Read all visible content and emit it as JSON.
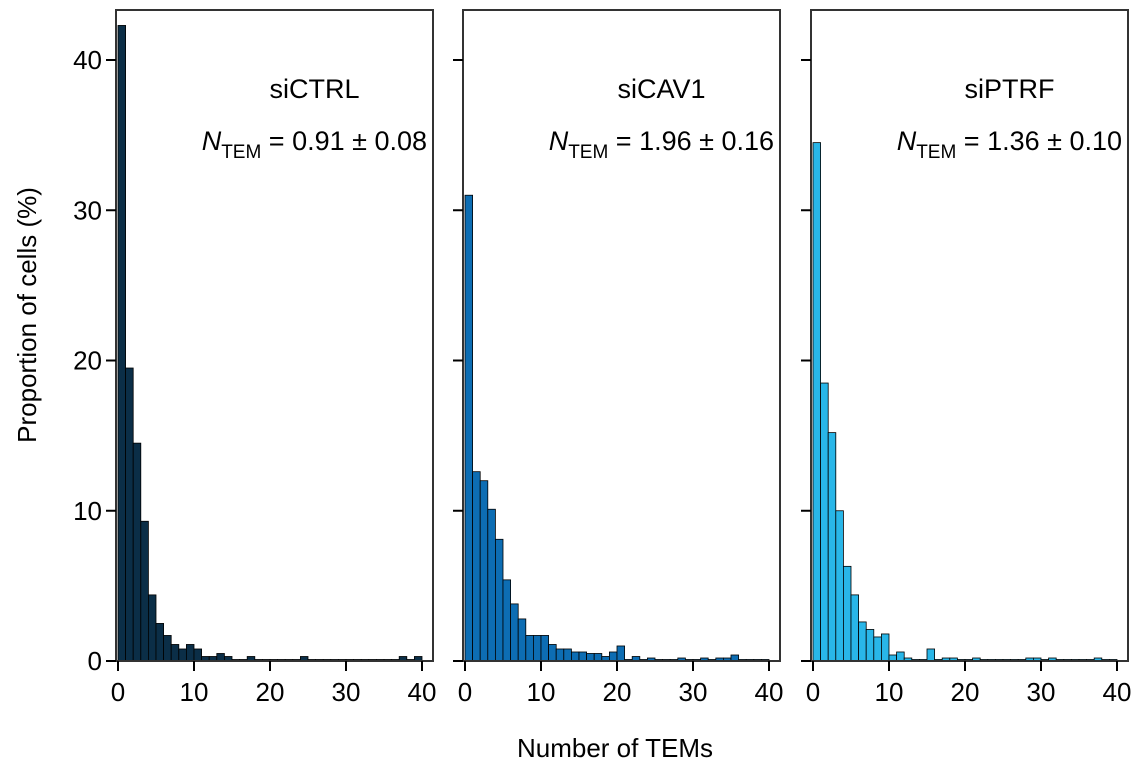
{
  "figure": {
    "ylabel": "Proportion of cells (%)",
    "xlabel": "Number of TEMs"
  },
  "chart_data": [
    {
      "type": "bar",
      "title": "siCTRL",
      "annotation": {
        "symbol": "N",
        "subscript": "TEM",
        "text": "= 0.91 ± 0.08"
      },
      "color": "#0b2e47",
      "xlim": [
        0,
        41
      ],
      "ylim": [
        0,
        43
      ],
      "xticks": [
        0,
        10,
        20,
        30,
        40
      ],
      "yticks": [
        0,
        10,
        20,
        30,
        40
      ],
      "bin_width": 1,
      "x": [
        1,
        2,
        3,
        4,
        5,
        6,
        7,
        8,
        9,
        10,
        11,
        12,
        13,
        14,
        15,
        16,
        17,
        18,
        19,
        20,
        21,
        22,
        23,
        24,
        25,
        26,
        27,
        28,
        29,
        30,
        31,
        32,
        33,
        34,
        35,
        36,
        37,
        38,
        39,
        40
      ],
      "values": [
        42.3,
        19.5,
        14.5,
        9.3,
        4.4,
        2.5,
        1.7,
        1.1,
        0.8,
        1.1,
        0.8,
        0.3,
        0.3,
        0.5,
        0.3,
        0.1,
        0.1,
        0.3,
        0.1,
        0.1,
        0.1,
        0.1,
        0.1,
        0.1,
        0.3,
        0.1,
        0.1,
        0.1,
        0.1,
        0.1,
        0.1,
        0.1,
        0.1,
        0.1,
        0.1,
        0.1,
        0.1,
        0.3,
        0.1,
        0.3
      ]
    },
    {
      "type": "bar",
      "title": "siCAV1",
      "annotation": {
        "symbol": "N",
        "subscript": "TEM",
        "text": "= 1.96 ± 0.16"
      },
      "color": "#0d6db3",
      "xlim": [
        0,
        41
      ],
      "ylim": [
        0,
        43
      ],
      "xticks": [
        0,
        10,
        20,
        30,
        40
      ],
      "yticks": [
        0,
        10,
        20,
        30,
        40
      ],
      "bin_width": 1,
      "x": [
        1,
        2,
        3,
        4,
        5,
        6,
        7,
        8,
        9,
        10,
        11,
        12,
        13,
        14,
        15,
        16,
        17,
        18,
        19,
        20,
        21,
        22,
        23,
        24,
        25,
        26,
        27,
        28,
        29,
        30,
        31,
        32,
        33,
        34,
        35,
        36,
        37,
        38,
        39,
        40
      ],
      "values": [
        31.0,
        12.6,
        12.0,
        10.1,
        8.1,
        5.4,
        3.8,
        2.8,
        1.7,
        1.7,
        1.7,
        1.1,
        0.8,
        0.8,
        0.6,
        0.6,
        0.5,
        0.5,
        0.3,
        0.6,
        1.0,
        0.1,
        0.3,
        0.1,
        0.2,
        0.1,
        0.1,
        0.1,
        0.2,
        0.1,
        0.1,
        0.2,
        0.1,
        0.2,
        0.2,
        0.4,
        0.1,
        0.1,
        0.1,
        0.1
      ]
    },
    {
      "type": "bar",
      "title": "siPTRF",
      "annotation": {
        "symbol": "N",
        "subscript": "TEM",
        "text": "= 1.36 ± 0.10"
      },
      "color": "#29b6e8",
      "xlim": [
        0,
        41
      ],
      "ylim": [
        0,
        43
      ],
      "xticks": [
        0,
        10,
        20,
        30,
        40
      ],
      "yticks": [
        0,
        10,
        20,
        30,
        40
      ],
      "bin_width": 1,
      "x": [
        1,
        2,
        3,
        4,
        5,
        6,
        7,
        8,
        9,
        10,
        11,
        12,
        13,
        14,
        15,
        16,
        17,
        18,
        19,
        20,
        21,
        22,
        23,
        24,
        25,
        26,
        27,
        28,
        29,
        30,
        31,
        32,
        33,
        34,
        35,
        36,
        37,
        38,
        39,
        40
      ],
      "values": [
        34.5,
        18.5,
        15.2,
        10.0,
        6.3,
        4.4,
        2.6,
        2.1,
        1.6,
        1.8,
        0.4,
        0.6,
        0.2,
        0.1,
        0.1,
        0.8,
        0.1,
        0.2,
        0.2,
        0.1,
        0.1,
        0.2,
        0.1,
        0.1,
        0.1,
        0.1,
        0.1,
        0.1,
        0.2,
        0.2,
        0.1,
        0.2,
        0.1,
        0.1,
        0.1,
        0.1,
        0.1,
        0.2,
        0.1,
        0.1
      ]
    }
  ]
}
